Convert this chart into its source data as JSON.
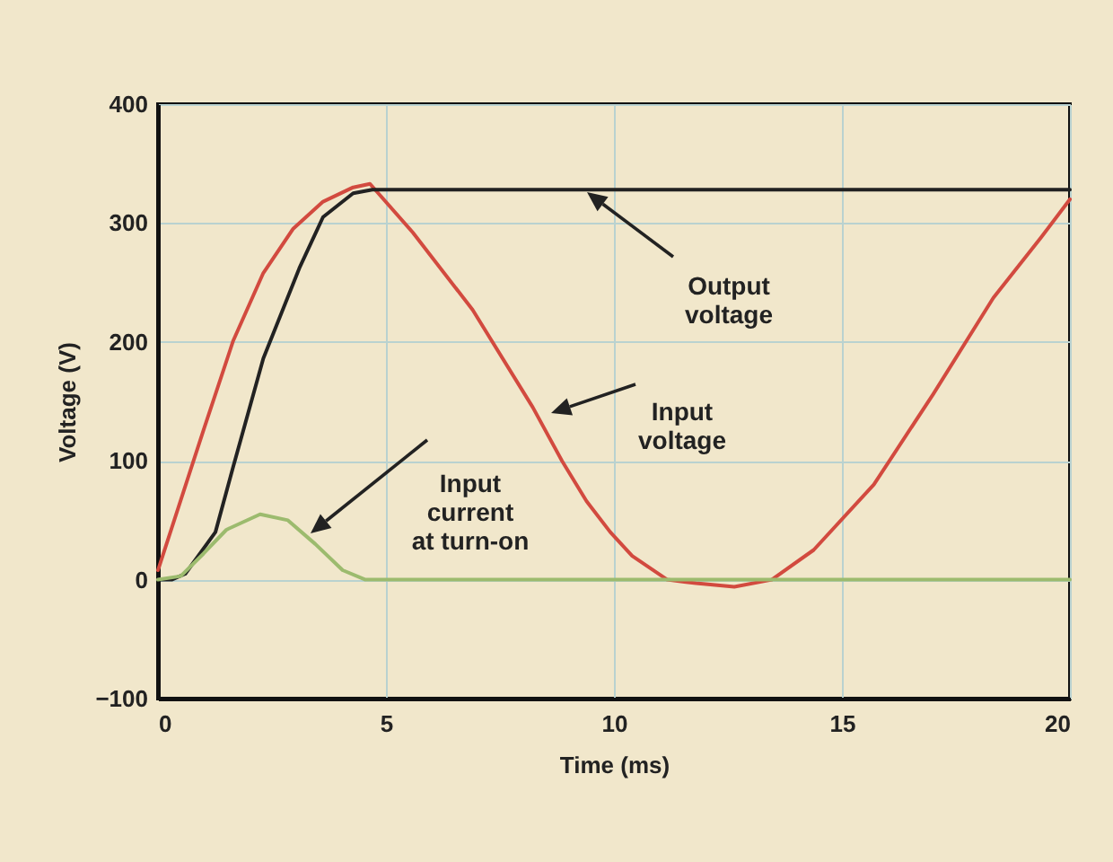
{
  "chart_data": {
    "type": "line",
    "xlabel": "Time (ms)",
    "ylabel": "Voltage (V)",
    "xlim": [
      0,
      20
    ],
    "xticks": [
      0,
      5,
      10,
      15,
      20
    ],
    "ylim": [
      -100,
      400
    ],
    "yticks": [
      -100,
      0,
      100,
      200,
      300,
      400
    ],
    "grid": true,
    "line_style": "solid",
    "marker": "none",
    "series": [
      {
        "color": "#d24a3f",
        "x": [
          0,
          1.0,
          1.65,
          2.31,
          2.96,
          3.62,
          4.28,
          4.65,
          5.59,
          6.9,
          8.22,
          8.86,
          9.4,
          9.92,
          10.4,
          11.17,
          11.8,
          12.64,
          13.46,
          14.38,
          15.7,
          17.0,
          18.32,
          19.37,
          20
        ],
        "values": [
          8,
          126,
          201,
          258,
          295,
          318,
          330,
          333,
          292,
          227,
          145,
          100,
          66,
          40,
          20,
          0,
          -3,
          -6,
          0,
          25,
          80,
          156,
          237,
          288,
          320
        ]
      },
      {
        "color": "#222222",
        "x": [
          0,
          0.3,
          0.6,
          1.26,
          1.65,
          2.31,
          3.1,
          3.62,
          4.28,
          4.7,
          20
        ],
        "values": [
          0,
          0,
          5,
          40,
          95,
          186,
          262,
          305,
          325,
          328,
          328
        ]
      },
      {
        "color": "#9cbb6e",
        "x": [
          0,
          0.5,
          1.0,
          1.5,
          2.24,
          2.85,
          3.45,
          4.05,
          4.55,
          20
        ],
        "values": [
          0,
          3,
          22,
          42,
          55,
          50,
          30,
          8,
          0,
          0
        ]
      }
    ],
    "annotations": [
      "Output\nvoltage",
      "Input\nvoltage",
      "Input\ncurrent\nat turn-on"
    ]
  }
}
